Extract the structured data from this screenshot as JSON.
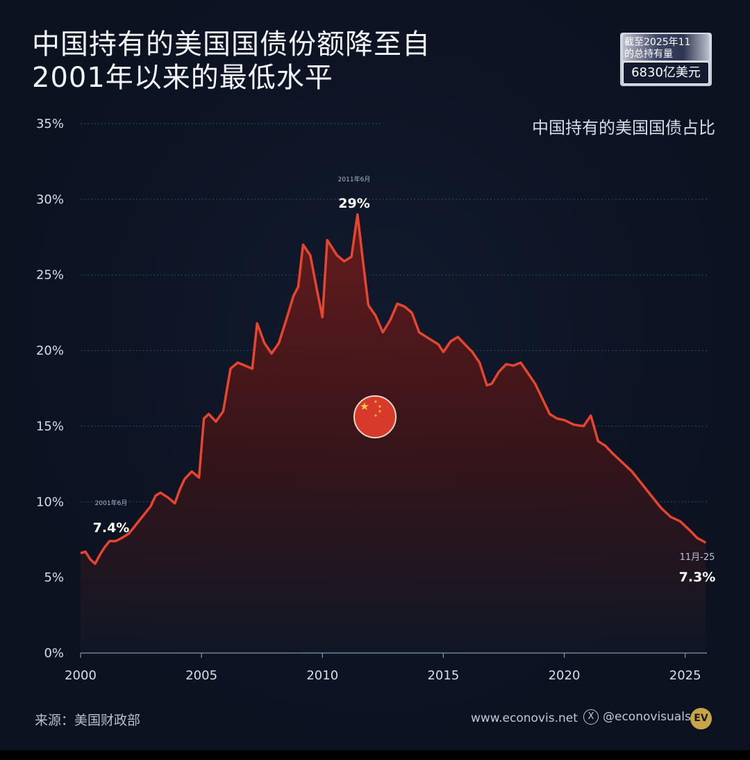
{
  "title_line1": "中国持有的美国国债份额降至自",
  "title_line2": "2001年以来的最低水平",
  "badge": {
    "line1": "截至2025年11",
    "line2": "的总持有量",
    "value": "6830亿美元"
  },
  "subtitle": "中国持有的美国国债占比",
  "source": "来源：美国财政部",
  "website": "www.econovis.net",
  "handle": "@econovisuals",
  "logo_text": "EV",
  "icons": [
    "x-logo-icon",
    "ev-logo-icon",
    "china-flag-icon"
  ],
  "colors": {
    "line": "#e8452f",
    "background": "#0b1220",
    "area_top": "#5a1a1a"
  },
  "chart_data": {
    "type": "area",
    "title": "",
    "xlabel": "",
    "ylabel": "",
    "xlim": [
      2000,
      2025.9
    ],
    "ylim": [
      0,
      35
    ],
    "x_ticks": [
      "2000",
      "2005",
      "2010",
      "2015",
      "2020",
      "2025"
    ],
    "y_ticks": [
      "0%",
      "5%",
      "10%",
      "15%",
      "20%",
      "25%",
      "30%",
      "35%"
    ],
    "grid": "horizontal dashed",
    "annotations": [
      {
        "date": "2001年6月",
        "label": "7.4%",
        "x": 2001.45,
        "y": 7.4
      },
      {
        "date": "2011年6月",
        "label": "29%",
        "x": 2011.45,
        "y": 29.0
      },
      {
        "date": "11月-25",
        "label": "7.3%",
        "x": 2025.85,
        "y": 7.3
      }
    ],
    "series": [
      {
        "x": [
          2000.0,
          2000.2,
          2000.4,
          2000.6,
          2000.8,
          2001.0,
          2001.2,
          2001.45,
          2001.7,
          2002.0,
          2002.3,
          2002.6,
          2002.9,
          2003.1,
          2003.3,
          2003.6,
          2003.9,
          2004.1,
          2004.3,
          2004.6,
          2004.9,
          2005.1,
          2005.3,
          2005.6,
          2005.9,
          2006.2,
          2006.5,
          2006.8,
          2007.1,
          2007.3,
          2007.6,
          2007.9,
          2008.2,
          2008.5,
          2008.8,
          2009.0,
          2009.2,
          2009.5,
          2009.8,
          2010.0,
          2010.2,
          2010.4,
          2010.6,
          2010.9,
          2011.2,
          2011.45,
          2011.7,
          2011.9,
          2012.2,
          2012.5,
          2012.8,
          2013.1,
          2013.4,
          2013.7,
          2014.0,
          2014.4,
          2014.8,
          2015.0,
          2015.3,
          2015.6,
          2015.9,
          2016.2,
          2016.5,
          2016.8,
          2017.0,
          2017.3,
          2017.6,
          2017.9,
          2018.2,
          2018.5,
          2018.8,
          2019.1,
          2019.4,
          2019.7,
          2020.0,
          2020.4,
          2020.8,
          2021.1,
          2021.4,
          2021.7,
          2022.0,
          2022.4,
          2022.8,
          2023.2,
          2023.6,
          2024.0,
          2024.4,
          2024.8,
          2025.2,
          2025.5,
          2025.85
        ],
        "y": [
          6.6,
          6.7,
          6.2,
          5.9,
          6.5,
          7.0,
          7.4,
          7.4,
          7.6,
          7.9,
          8.5,
          9.1,
          9.7,
          10.4,
          10.6,
          10.3,
          9.9,
          10.8,
          11.5,
          12.0,
          11.6,
          15.5,
          15.8,
          15.3,
          16.0,
          18.8,
          19.2,
          19.0,
          18.8,
          21.8,
          20.5,
          19.8,
          20.5,
          22.0,
          23.6,
          24.2,
          27.0,
          26.3,
          23.8,
          22.2,
          27.3,
          26.8,
          26.3,
          25.9,
          26.2,
          29.0,
          25.6,
          23.0,
          22.3,
          21.2,
          22.0,
          23.1,
          22.9,
          22.5,
          21.2,
          20.8,
          20.4,
          19.9,
          20.6,
          20.9,
          20.4,
          19.9,
          19.2,
          17.7,
          17.8,
          18.6,
          19.1,
          19.0,
          19.2,
          18.5,
          17.8,
          16.8,
          15.8,
          15.5,
          15.4,
          15.1,
          15.0,
          15.7,
          14.0,
          13.7,
          13.2,
          12.6,
          12.0,
          11.2,
          10.4,
          9.6,
          9.0,
          8.7,
          8.1,
          7.6,
          7.3
        ]
      }
    ]
  }
}
